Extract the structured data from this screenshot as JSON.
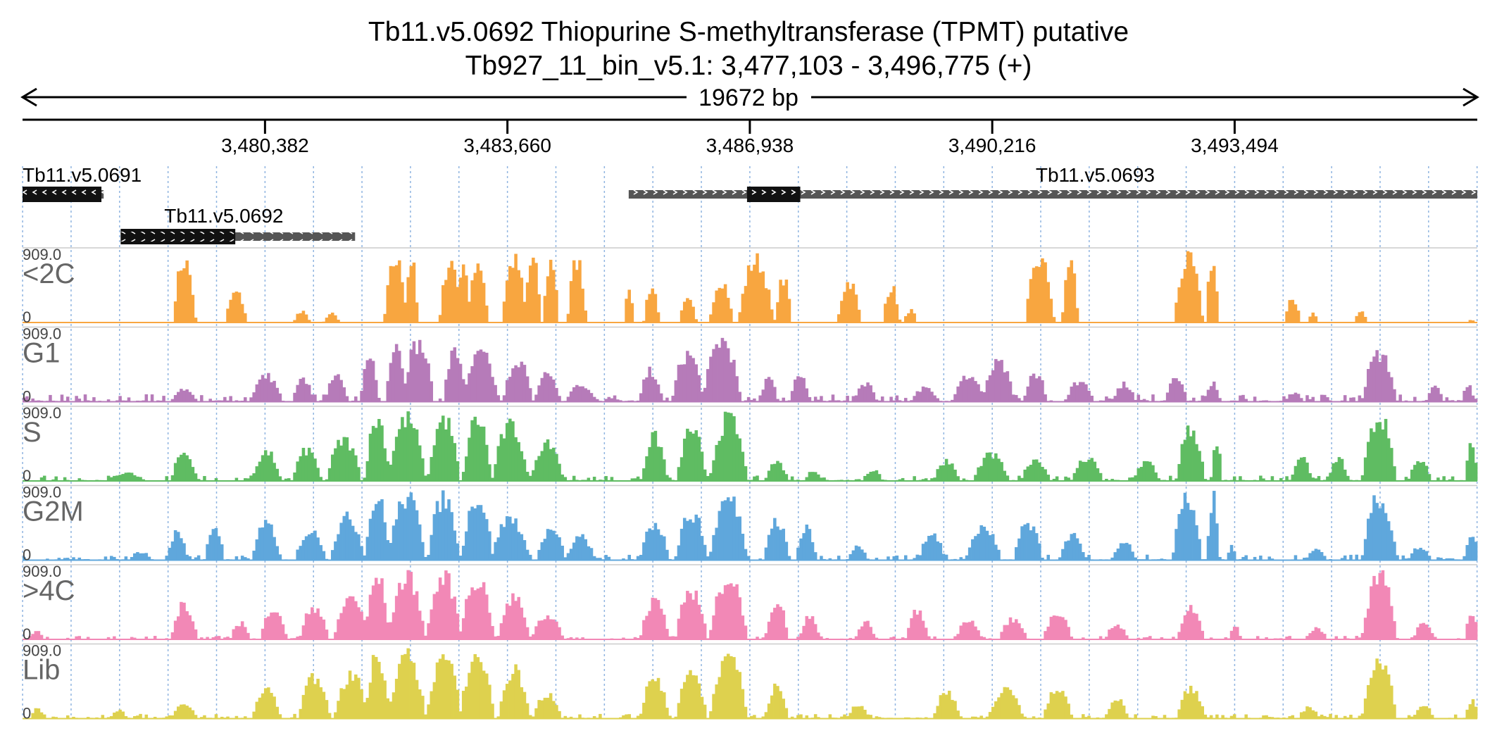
{
  "header": {
    "title": "Tb11.v5.0692  Thiopurine S-methyltransferase (TPMT)  putative",
    "subtitle": "Tb927_11_bin_v5.1: 3,477,103 - 3,496,775 (+)",
    "span_label": "19672 bp"
  },
  "chart_data": {
    "type": "area",
    "region": {
      "start": 3477103,
      "end": 3496775
    },
    "ticks": [
      {
        "pos": 3480382,
        "label": "3,480,382"
      },
      {
        "pos": 3483660,
        "label": "3,483,660"
      },
      {
        "pos": 3486938,
        "label": "3,486,938"
      },
      {
        "pos": 3490216,
        "label": "3,490,216"
      },
      {
        "pos": 3493494,
        "label": "3,493,494"
      }
    ],
    "genes": [
      {
        "name": "Tb11.v5.0691",
        "strand": "-",
        "start": 3477103,
        "end": 3478200,
        "cds": [
          3477103,
          3478170
        ]
      },
      {
        "name": "Tb11.v5.0692",
        "strand": "-",
        "start": 3478430,
        "end": 3481600,
        "cds": [
          3478430,
          3479980
        ]
      },
      {
        "name": "Tb11.v5.0693",
        "strand": "+",
        "start": 3485300,
        "end": 3496775,
        "cds": [
          3486900,
          3487620
        ]
      }
    ],
    "ymax_label": "909.0",
    "ymin_label": "0",
    "ylim": [
      0,
      909
    ],
    "tracks": [
      {
        "name": "<2C",
        "color": "#f8a640",
        "peaks": [
          [
            3479290,
            160,
            900
          ],
          [
            3479990,
            150,
            440
          ],
          [
            3480880,
            110,
            170
          ],
          [
            3481280,
            110,
            130
          ],
          [
            3482150,
            160,
            909
          ],
          [
            3482360,
            90,
            909
          ],
          [
            3482890,
            150,
            909
          ],
          [
            3483060,
            100,
            909
          ],
          [
            3483260,
            140,
            909
          ],
          [
            3483750,
            170,
            909
          ],
          [
            3484000,
            120,
            909
          ],
          [
            3484250,
            110,
            909
          ],
          [
            3484600,
            130,
            909
          ],
          [
            3485300,
            60,
            580
          ],
          [
            3485610,
            110,
            520
          ],
          [
            3486100,
            120,
            320
          ],
          [
            3486550,
            160,
            620
          ],
          [
            3487020,
            240,
            909
          ],
          [
            3487390,
            120,
            620
          ],
          [
            3488280,
            160,
            600
          ],
          [
            3488850,
            120,
            520
          ],
          [
            3489110,
            90,
            180
          ],
          [
            3490860,
            200,
            909
          ],
          [
            3491270,
            110,
            909
          ],
          [
            3492870,
            200,
            909
          ],
          [
            3493190,
            90,
            909
          ],
          [
            3494280,
            110,
            340
          ],
          [
            3494550,
            70,
            140
          ],
          [
            3495200,
            90,
            160
          ],
          [
            3496700,
            60,
            40
          ]
        ]
      },
      {
        "name": "G1",
        "color": "#b67bb9",
        "noise": 95,
        "peaks": [
          [
            3479290,
            180,
            180
          ],
          [
            3480400,
            220,
            380
          ],
          [
            3480900,
            150,
            320
          ],
          [
            3481350,
            160,
            420
          ],
          [
            3481800,
            130,
            620
          ],
          [
            3482150,
            140,
            909
          ],
          [
            3482450,
            220,
            850
          ],
          [
            3482950,
            160,
            730
          ],
          [
            3483300,
            240,
            700
          ],
          [
            3483800,
            200,
            620
          ],
          [
            3484200,
            180,
            420
          ],
          [
            3484650,
            200,
            260
          ],
          [
            3485600,
            160,
            450
          ],
          [
            3486100,
            220,
            700
          ],
          [
            3486560,
            260,
            909
          ],
          [
            3487200,
            120,
            380
          ],
          [
            3487620,
            140,
            380
          ],
          [
            3488500,
            160,
            260
          ],
          [
            3489300,
            180,
            200
          ],
          [
            3489900,
            220,
            380
          ],
          [
            3490300,
            220,
            560
          ],
          [
            3490800,
            160,
            420
          ],
          [
            3491400,
            200,
            300
          ],
          [
            3492000,
            160,
            260
          ],
          [
            3492700,
            150,
            380
          ],
          [
            3493200,
            100,
            300
          ],
          [
            3494300,
            120,
            140
          ],
          [
            3495450,
            240,
            700
          ],
          [
            3496200,
            120,
            220
          ],
          [
            3496650,
            80,
            260
          ]
        ]
      },
      {
        "name": "S",
        "color": "#5fbc62",
        "noise": 70,
        "peaks": [
          [
            3478500,
            260,
            120
          ],
          [
            3479290,
            180,
            420
          ],
          [
            3480400,
            200,
            420
          ],
          [
            3480950,
            200,
            450
          ],
          [
            3481450,
            240,
            600
          ],
          [
            3481900,
            170,
            909
          ],
          [
            3482300,
            260,
            909
          ],
          [
            3482800,
            220,
            909
          ],
          [
            3483250,
            200,
            909
          ],
          [
            3483700,
            250,
            800
          ],
          [
            3484200,
            220,
            600
          ],
          [
            3485650,
            180,
            640
          ],
          [
            3486150,
            200,
            760
          ],
          [
            3486650,
            260,
            909
          ],
          [
            3487300,
            160,
            280
          ],
          [
            3487800,
            120,
            160
          ],
          [
            3488600,
            140,
            160
          ],
          [
            3489600,
            180,
            300
          ],
          [
            3490200,
            240,
            380
          ],
          [
            3490800,
            200,
            320
          ],
          [
            3491500,
            220,
            320
          ],
          [
            3492300,
            180,
            280
          ],
          [
            3492900,
            200,
            760
          ],
          [
            3493250,
            80,
            500
          ],
          [
            3494400,
            150,
            320
          ],
          [
            3494900,
            140,
            320
          ],
          [
            3495450,
            240,
            909
          ],
          [
            3496000,
            160,
            280
          ],
          [
            3496700,
            90,
            520
          ]
        ]
      },
      {
        "name": "G2M",
        "color": "#5fa7dc",
        "noise": 70,
        "peaks": [
          [
            3478700,
            160,
            120
          ],
          [
            3479200,
            140,
            420
          ],
          [
            3479700,
            130,
            500
          ],
          [
            3480400,
            200,
            520
          ],
          [
            3481000,
            220,
            420
          ],
          [
            3481500,
            240,
            620
          ],
          [
            3481900,
            170,
            909
          ],
          [
            3482300,
            260,
            909
          ],
          [
            3482800,
            220,
            909
          ],
          [
            3483250,
            220,
            909
          ],
          [
            3483700,
            260,
            620
          ],
          [
            3484250,
            200,
            440
          ],
          [
            3484650,
            200,
            340
          ],
          [
            3485650,
            200,
            540
          ],
          [
            3486150,
            220,
            680
          ],
          [
            3486650,
            260,
            909
          ],
          [
            3487300,
            180,
            560
          ],
          [
            3487700,
            140,
            480
          ],
          [
            3488400,
            140,
            200
          ],
          [
            3489400,
            180,
            400
          ],
          [
            3490100,
            240,
            480
          ],
          [
            3490700,
            200,
            520
          ],
          [
            3491300,
            180,
            380
          ],
          [
            3492000,
            160,
            280
          ],
          [
            3492850,
            200,
            909
          ],
          [
            3493200,
            80,
            909
          ],
          [
            3493450,
            60,
            220
          ],
          [
            3494600,
            150,
            160
          ],
          [
            3495450,
            240,
            909
          ],
          [
            3496000,
            160,
            200
          ],
          [
            3496700,
            90,
            420
          ]
        ]
      },
      {
        "name": ">4C",
        "color": "#f288b6",
        "noise": 45,
        "peaks": [
          [
            3477300,
            100,
            120
          ],
          [
            3479290,
            180,
            520
          ],
          [
            3480050,
            140,
            240
          ],
          [
            3480500,
            180,
            480
          ],
          [
            3481050,
            200,
            480
          ],
          [
            3481550,
            240,
            620
          ],
          [
            3481900,
            170,
            909
          ],
          [
            3482300,
            260,
            909
          ],
          [
            3482800,
            240,
            909
          ],
          [
            3483250,
            240,
            880
          ],
          [
            3483750,
            220,
            600
          ],
          [
            3484200,
            220,
            360
          ],
          [
            3485650,
            200,
            560
          ],
          [
            3486150,
            220,
            720
          ],
          [
            3486650,
            260,
            909
          ],
          [
            3487300,
            160,
            560
          ],
          [
            3487750,
            140,
            360
          ],
          [
            3488500,
            140,
            260
          ],
          [
            3489200,
            160,
            400
          ],
          [
            3489900,
            180,
            300
          ],
          [
            3490500,
            200,
            300
          ],
          [
            3491100,
            200,
            360
          ],
          [
            3491900,
            160,
            220
          ],
          [
            3492900,
            180,
            500
          ],
          [
            3493500,
            80,
            200
          ],
          [
            3494600,
            150,
            160
          ],
          [
            3495450,
            240,
            909
          ],
          [
            3496050,
            140,
            280
          ],
          [
            3496700,
            90,
            420
          ]
        ]
      },
      {
        "name": "Lib",
        "color": "#ded14e",
        "noise": 60,
        "peaks": [
          [
            3477300,
            100,
            140
          ],
          [
            3478400,
            120,
            120
          ],
          [
            3479290,
            180,
            200
          ],
          [
            3480400,
            200,
            420
          ],
          [
            3481050,
            220,
            620
          ],
          [
            3481550,
            240,
            620
          ],
          [
            3481900,
            170,
            909
          ],
          [
            3482300,
            260,
            909
          ],
          [
            3482800,
            240,
            909
          ],
          [
            3483250,
            240,
            909
          ],
          [
            3483750,
            220,
            700
          ],
          [
            3484200,
            200,
            360
          ],
          [
            3485650,
            200,
            600
          ],
          [
            3486150,
            220,
            660
          ],
          [
            3486650,
            260,
            909
          ],
          [
            3487300,
            160,
            460
          ],
          [
            3488400,
            140,
            220
          ],
          [
            3489600,
            180,
            380
          ],
          [
            3490400,
            240,
            440
          ],
          [
            3491100,
            200,
            420
          ],
          [
            3491900,
            160,
            280
          ],
          [
            3492900,
            200,
            420
          ],
          [
            3494500,
            150,
            160
          ],
          [
            3495450,
            240,
            909
          ],
          [
            3496050,
            140,
            200
          ],
          [
            3496700,
            90,
            260
          ]
        ]
      }
    ]
  }
}
